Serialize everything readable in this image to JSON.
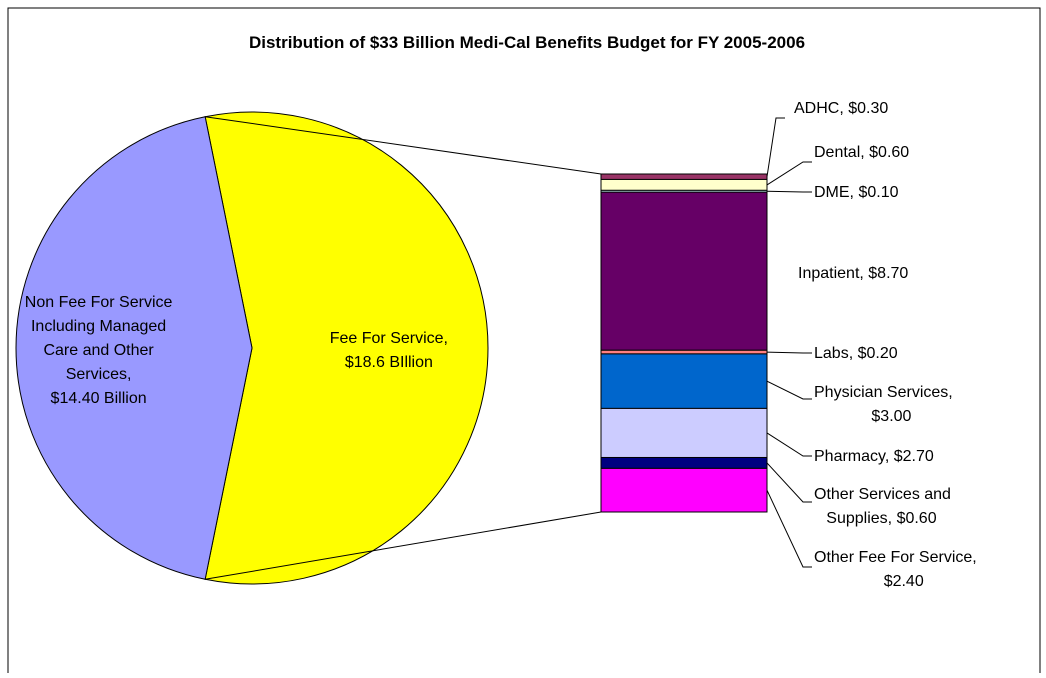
{
  "chart_data": {
    "type": "pie",
    "subtype": "bar-of-pie",
    "title": "Distribution of $33 Billion Medi-Cal Benefits Budget for FY 2005-2006",
    "pie": {
      "slices": [
        {
          "id": "ffs",
          "label_lines": [
            "Fee For Service,",
            "$18.6 BIllion"
          ],
          "value": 18.6,
          "color": "#FFFF00"
        },
        {
          "id": "nonffs",
          "label_lines": [
            "Non Fee For Service",
            "Including Managed",
            "Care and Other",
            "Services,",
            "$14.40  Billion"
          ],
          "value": 14.4,
          "color": "#9999FF"
        }
      ]
    },
    "breakdown": {
      "parent_slice": "ffs",
      "order": "top-to-bottom",
      "segments": [
        {
          "name": "ADHC",
          "value": 0.3,
          "color": "#993366",
          "label_lines": [
            "ADHC, $0.30"
          ]
        },
        {
          "name": "Dental",
          "value": 0.6,
          "color": "#FFFFCC",
          "label_lines": [
            "Dental, $0.60"
          ]
        },
        {
          "name": "DME",
          "value": 0.1,
          "color": "#CCFFFF",
          "label_lines": [
            "DME, $0.10"
          ]
        },
        {
          "name": "Inpatient",
          "value": 8.7,
          "color": "#660066",
          "label_lines": [
            "Inpatient, $8.70"
          ]
        },
        {
          "name": "Labs",
          "value": 0.2,
          "color": "#FF8080",
          "label_lines": [
            "Labs, $0.20"
          ]
        },
        {
          "name": "Physician Services",
          "value": 3.0,
          "color": "#0066CC",
          "label_lines": [
            "Physician Services,",
            "$3.00"
          ]
        },
        {
          "name": "Pharmacy",
          "value": 2.7,
          "color": "#CCCCFF",
          "label_lines": [
            "Pharmacy, $2.70"
          ]
        },
        {
          "name": "Other Services and Supplies",
          "value": 0.6,
          "color": "#000080",
          "label_lines": [
            "Other Services and",
            "Supplies, $0.60"
          ]
        },
        {
          "name": "Other Fee For Service",
          "value": 2.4,
          "color": "#FF00FF",
          "label_lines": [
            "Other Fee For Service,",
            "$2.40"
          ]
        }
      ]
    },
    "legend": "none"
  }
}
